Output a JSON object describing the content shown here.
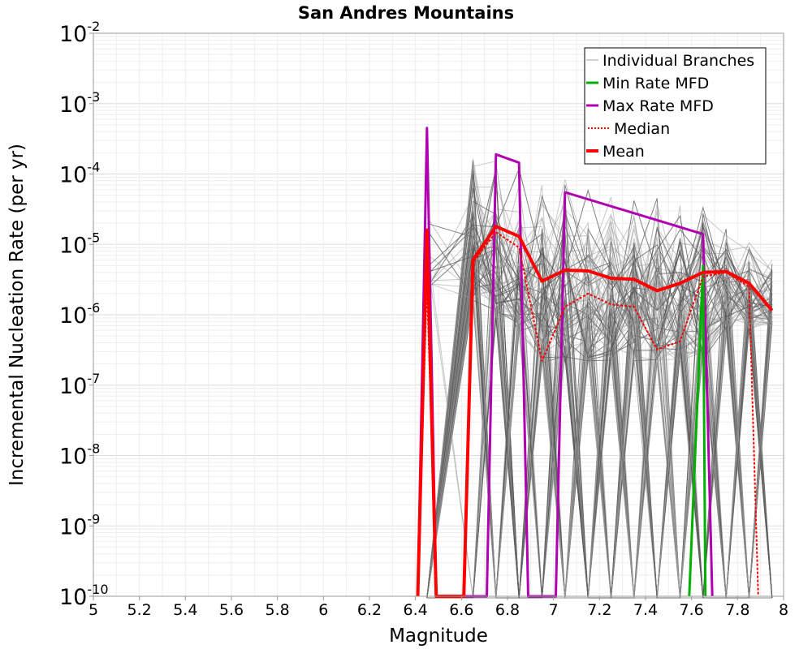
{
  "chart_data": {
    "type": "line",
    "title": "San Andres Mountains",
    "xlabel": "Magnitude",
    "ylabel": "Incremental Nucleation Rate (per yr)",
    "x_scale": "linear",
    "y_scale": "log",
    "xlim": [
      5,
      8
    ],
    "ylim": [
      1e-10,
      0.01
    ],
    "x_ticks": [
      "5",
      "5.2",
      "5.4",
      "5.6",
      "5.8",
      "6",
      "6.2",
      "6.4",
      "6.6",
      "6.8",
      "7",
      "7.2",
      "7.4",
      "7.6",
      "7.8",
      "8"
    ],
    "x_tick_values": [
      5,
      5.2,
      5.4,
      5.6,
      5.8,
      6,
      6.2,
      6.4,
      6.6,
      6.8,
      7,
      7.2,
      7.4,
      7.6,
      7.8,
      8
    ],
    "y_tick_exponents": [
      "-10",
      "-9",
      "-8",
      "-7",
      "-6",
      "-5",
      "-4",
      "-3",
      "-2"
    ],
    "y_tick_base": "10",
    "grid": true,
    "legend_position": "top-right",
    "legend": [
      {
        "label": "Individual Branches",
        "color": "#a0a0a0",
        "style": "thin"
      },
      {
        "label": "Min Rate MFD",
        "color": "#00b000",
        "style": "solid"
      },
      {
        "label": "Max Rate MFD",
        "color": "#b000b0",
        "style": "solid"
      },
      {
        "label": "Median",
        "color": "#ff0000",
        "style": "dotted"
      },
      {
        "label": "Mean",
        "color": "#ff0000",
        "style": "thick"
      }
    ],
    "series": [
      {
        "name": "Max Rate MFD",
        "color": "#b000b0",
        "points": [
          {
            "x": 6.41,
            "y": 1e-10
          },
          {
            "x": 6.45,
            "y": 0.00045
          },
          {
            "x": 6.49,
            "y": 1e-10
          },
          {
            "x": 6.71,
            "y": 1e-10
          },
          {
            "x": 6.75,
            "y": 0.00019
          },
          {
            "x": 6.85,
            "y": 0.000145
          },
          {
            "x": 6.89,
            "y": 1e-10
          },
          {
            "x": 7.01,
            "y": 1e-10
          },
          {
            "x": 7.05,
            "y": 5.5e-05
          },
          {
            "x": 7.65,
            "y": 1.4e-05
          },
          {
            "x": 7.69,
            "y": 1e-10
          }
        ]
      },
      {
        "name": "Min Rate MFD",
        "color": "#00b000",
        "points": [
          {
            "x": 7.59,
            "y": 1e-10
          },
          {
            "x": 7.65,
            "y": 5e-06
          },
          {
            "x": 7.66,
            "y": 1e-10
          }
        ]
      },
      {
        "name": "Median",
        "color": "#ff0000",
        "points": [
          {
            "x": 6.41,
            "y": 1e-10
          },
          {
            "x": 6.45,
            "y": 3e-06
          },
          {
            "x": 6.49,
            "y": 1e-10
          },
          {
            "x": 6.61,
            "y": 1e-10
          },
          {
            "x": 6.65,
            "y": 5.5e-06
          },
          {
            "x": 6.75,
            "y": 1.5e-05
          },
          {
            "x": 6.85,
            "y": 9e-06
          },
          {
            "x": 6.95,
            "y": 2.2e-07
          },
          {
            "x": 7.05,
            "y": 1.3e-06
          },
          {
            "x": 7.15,
            "y": 2e-06
          },
          {
            "x": 7.25,
            "y": 1.4e-06
          },
          {
            "x": 7.35,
            "y": 1.3e-06
          },
          {
            "x": 7.45,
            "y": 3.2e-07
          },
          {
            "x": 7.55,
            "y": 4.2e-07
          },
          {
            "x": 7.65,
            "y": 3.5e-06
          },
          {
            "x": 7.75,
            "y": 4e-06
          },
          {
            "x": 7.85,
            "y": 2.5e-06
          },
          {
            "x": 7.89,
            "y": 1e-10
          }
        ]
      },
      {
        "name": "Mean",
        "color": "#ff0000",
        "points": [
          {
            "x": 6.41,
            "y": 1e-10
          },
          {
            "x": 6.45,
            "y": 1.6e-05
          },
          {
            "x": 6.49,
            "y": 1e-10
          },
          {
            "x": 6.61,
            "y": 1e-10
          },
          {
            "x": 6.65,
            "y": 6e-06
          },
          {
            "x": 6.75,
            "y": 1.8e-05
          },
          {
            "x": 6.85,
            "y": 1.3e-05
          },
          {
            "x": 6.95,
            "y": 3e-06
          },
          {
            "x": 7.05,
            "y": 4.3e-06
          },
          {
            "x": 7.15,
            "y": 4.2e-06
          },
          {
            "x": 7.25,
            "y": 3.3e-06
          },
          {
            "x": 7.35,
            "y": 3.2e-06
          },
          {
            "x": 7.45,
            "y": 2.2e-06
          },
          {
            "x": 7.55,
            "y": 2.8e-06
          },
          {
            "x": 7.65,
            "y": 4e-06
          },
          {
            "x": 7.75,
            "y": 4.1e-06
          },
          {
            "x": 7.85,
            "y": 2.8e-06
          },
          {
            "x": 7.95,
            "y": 1.15e-06
          }
        ]
      }
    ],
    "branches_envelope": {
      "description": "Individual branch MFDs (grey), approximate range per magnitude bin",
      "x": [
        6.45,
        6.65,
        6.75,
        6.85,
        6.95,
        7.05,
        7.15,
        7.25,
        7.35,
        7.45,
        7.55,
        7.65,
        7.75,
        7.85,
        7.95
      ],
      "upper": [
        3e-05,
        0.00026,
        0.00023,
        0.00015,
        0.00012,
        0.0001,
        8.5e-05,
        7e-05,
        5.5e-05,
        5e-05,
        4.2e-05,
        3.5e-05,
        2e-05,
        1.2e-05,
        8e-06
      ],
      "lower": [
        2e-06,
        1.5e-06,
        8e-07,
        5e-07,
        2e-07,
        2e-07,
        2e-07,
        2e-07,
        2e-07,
        2e-07,
        2e-07,
        2e-07,
        5e-07,
        6e-07,
        6e-07
      ]
    }
  }
}
